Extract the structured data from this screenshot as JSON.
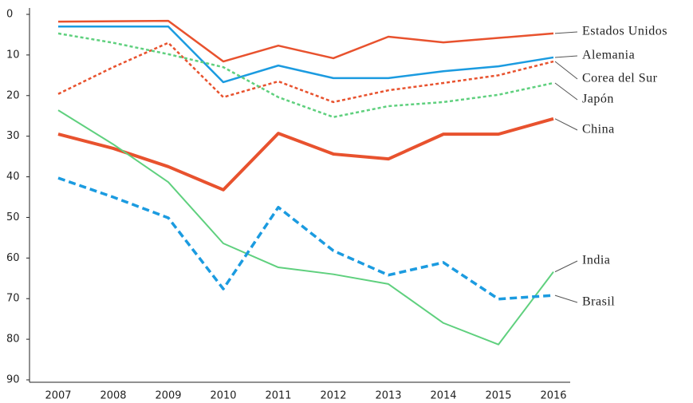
{
  "chart_data": {
    "type": "line",
    "categories": [
      "2007",
      "2008",
      "2009",
      "2010",
      "2011",
      "2012",
      "2013",
      "2014",
      "2015",
      "2016"
    ],
    "ylim": [
      0,
      90
    ],
    "yticks": [
      0,
      10,
      20,
      30,
      40,
      50,
      60,
      70,
      80,
      90
    ],
    "y_inverted": true,
    "grid": false,
    "series": [
      {
        "name": "Estados Unidos",
        "color": "#e8522e",
        "dash": "solid",
        "values": [
          1.8,
          1.7,
          1.6,
          11.6,
          7.7,
          10.8,
          5.5,
          6.9,
          5.8,
          4.7
        ]
      },
      {
        "name": "Alemania",
        "color": "#1b9be0",
        "dash": "solid",
        "values": [
          3,
          3,
          3,
          16.7,
          12.6,
          15.7,
          15.7,
          14,
          12.8,
          10.6
        ]
      },
      {
        "name": "Corea del Sur",
        "color": "#e8522e",
        "dash": "dotted",
        "values": [
          19.6,
          13,
          7,
          20.4,
          16.5,
          21.6,
          18.7,
          16.9,
          15,
          11.6
        ]
      },
      {
        "name": "Japón",
        "color": "#5fd07e",
        "dash": "dotted",
        "values": [
          4.7,
          7,
          9.8,
          13,
          20.4,
          25.3,
          22.6,
          21.6,
          19.8,
          16.9
        ]
      },
      {
        "name": "China",
        "color": "#e8522e",
        "dash": "solid",
        "values": [
          29.5,
          33,
          37.5,
          43.2,
          29.3,
          34.4,
          35.6,
          29.5,
          29.5,
          25.7
        ]
      },
      {
        "name": "India",
        "color": "#5fd07e",
        "dash": "solid",
        "values": [
          23.6,
          32,
          41.3,
          56.4,
          62.3,
          64,
          66.4,
          76,
          81.3,
          63.4
        ]
      },
      {
        "name": "Brasil",
        "color": "#1b9be0",
        "dash": "dashed",
        "values": [
          40.3,
          45,
          50.1,
          67.6,
          47.5,
          58.2,
          64.2,
          61.1,
          70.1,
          69.2
        ]
      }
    ]
  }
}
